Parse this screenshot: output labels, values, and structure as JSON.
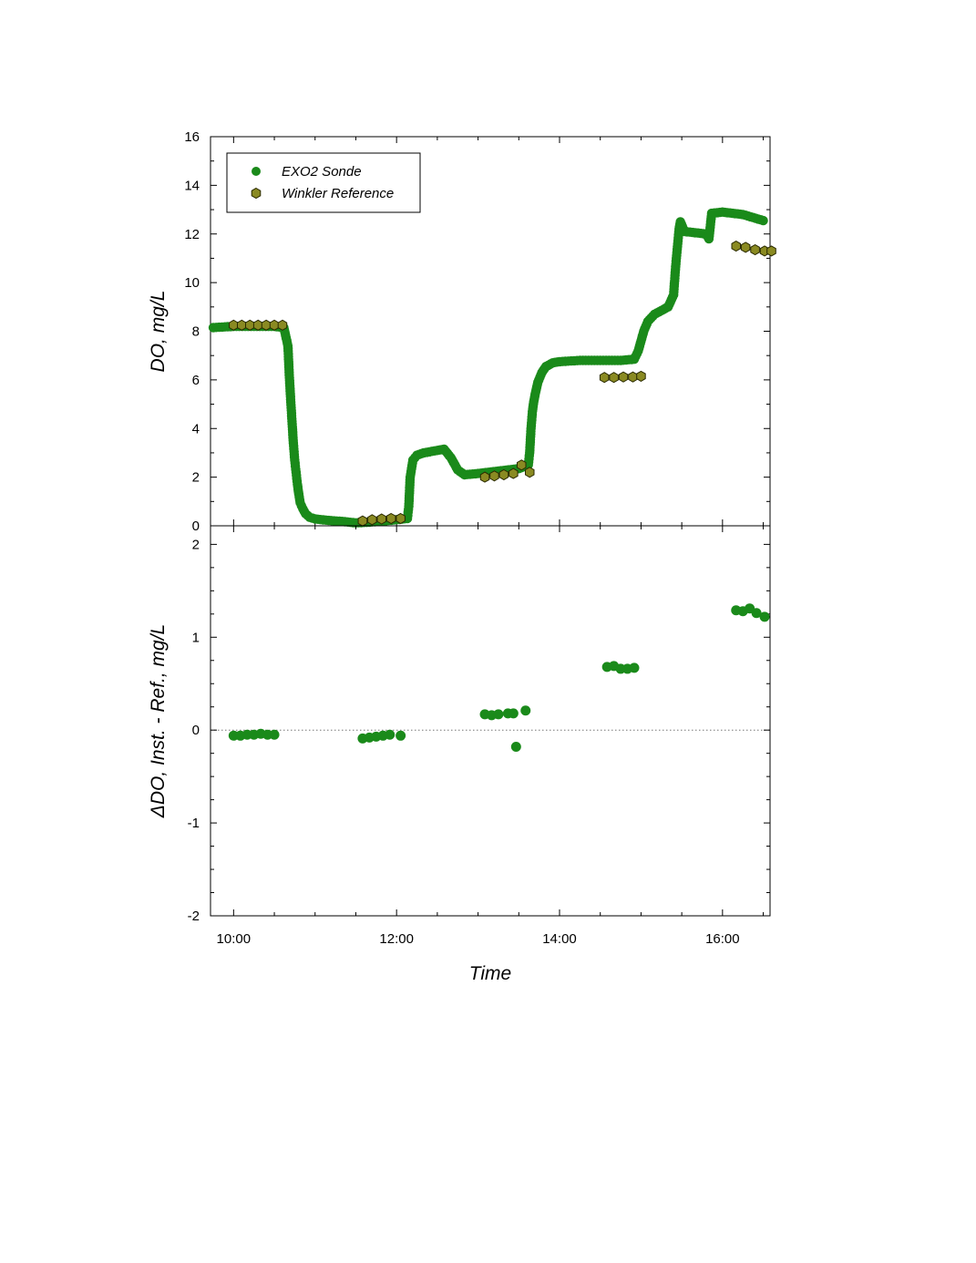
{
  "chart_data": [
    {
      "type": "scatter",
      "title": "",
      "xlabel": "Time",
      "ylabel": "DO, mg/L",
      "xlim": [
        "09:43",
        "16:35"
      ],
      "ylim": [
        0,
        16
      ],
      "yticks": [
        "0",
        "2",
        "4",
        "6",
        "8",
        "10",
        "12",
        "14",
        "16"
      ],
      "legend": "top-left",
      "colors": {
        "sonde": "#1a8a1a",
        "winkler": "#8a8a22"
      },
      "series": [
        {
          "name": "EXO2 Sonde",
          "marker": "circle",
          "points": [
            [
              "09:45",
              8.15
            ],
            [
              "10:00",
              8.2
            ],
            [
              "10:15",
              8.2
            ],
            [
              "10:30",
              8.2
            ],
            [
              "10:37",
              8.15
            ],
            [
              "10:40",
              7.4
            ],
            [
              "10:41",
              6.2
            ],
            [
              "10:42",
              5.2
            ],
            [
              "10:43",
              4.3
            ],
            [
              "10:44",
              3.4
            ],
            [
              "10:45",
              2.7
            ],
            [
              "10:46",
              2.2
            ],
            [
              "10:47",
              1.7
            ],
            [
              "10:48",
              1.3
            ],
            [
              "10:49",
              0.95
            ],
            [
              "10:51",
              0.7
            ],
            [
              "10:53",
              0.5
            ],
            [
              "10:56",
              0.35
            ],
            [
              "11:00",
              0.28
            ],
            [
              "11:10",
              0.22
            ],
            [
              "11:20",
              0.18
            ],
            [
              "11:30",
              0.12
            ],
            [
              "11:40",
              0.15
            ],
            [
              "11:50",
              0.2
            ],
            [
              "12:00",
              0.25
            ],
            [
              "12:08",
              0.3
            ],
            [
              "12:09",
              0.8
            ],
            [
              "12:10",
              2.0
            ],
            [
              "12:12",
              2.7
            ],
            [
              "12:15",
              2.9
            ],
            [
              "12:20",
              3.0
            ],
            [
              "12:30",
              3.1
            ],
            [
              "12:35",
              3.15
            ],
            [
              "12:40",
              2.8
            ],
            [
              "12:45",
              2.3
            ],
            [
              "12:50",
              2.1
            ],
            [
              "13:00",
              2.15
            ],
            [
              "13:15",
              2.25
            ],
            [
              "13:30",
              2.35
            ],
            [
              "13:37",
              2.5
            ],
            [
              "13:38",
              3.0
            ],
            [
              "13:39",
              4.0
            ],
            [
              "13:40",
              4.7
            ],
            [
              "13:41",
              5.1
            ],
            [
              "13:42",
              5.4
            ],
            [
              "13:44",
              5.9
            ],
            [
              "13:47",
              6.3
            ],
            [
              "13:50",
              6.55
            ],
            [
              "13:55",
              6.7
            ],
            [
              "14:00",
              6.75
            ],
            [
              "14:15",
              6.8
            ],
            [
              "14:30",
              6.8
            ],
            [
              "14:45",
              6.8
            ],
            [
              "14:55",
              6.85
            ],
            [
              "14:58",
              7.2
            ],
            [
              "15:00",
              7.6
            ],
            [
              "15:02",
              8.0
            ],
            [
              "15:05",
              8.4
            ],
            [
              "15:10",
              8.7
            ],
            [
              "15:15",
              8.85
            ],
            [
              "15:20",
              9.0
            ],
            [
              "15:24",
              9.5
            ],
            [
              "15:25",
              10.3
            ],
            [
              "15:26",
              11.0
            ],
            [
              "15:27",
              11.6
            ],
            [
              "15:28",
              12.2
            ],
            [
              "15:29",
              12.5
            ],
            [
              "15:32",
              12.1
            ],
            [
              "15:40",
              12.05
            ],
            [
              "15:48",
              12.0
            ],
            [
              "15:50",
              11.8
            ],
            [
              "15:52",
              12.85
            ],
            [
              "16:00",
              12.9
            ],
            [
              "16:15",
              12.8
            ],
            [
              "16:30",
              12.55
            ]
          ]
        },
        {
          "name": "Winkler Reference",
          "marker": "hexagon",
          "points": [
            [
              "10:00",
              8.25
            ],
            [
              "10:06",
              8.25
            ],
            [
              "10:12",
              8.25
            ],
            [
              "10:18",
              8.25
            ],
            [
              "10:24",
              8.25
            ],
            [
              "10:30",
              8.25
            ],
            [
              "10:36",
              8.25
            ],
            [
              "11:35",
              0.2
            ],
            [
              "11:42",
              0.25
            ],
            [
              "11:49",
              0.28
            ],
            [
              "11:56",
              0.3
            ],
            [
              "12:03",
              0.3
            ],
            [
              "13:05",
              2.0
            ],
            [
              "13:12",
              2.05
            ],
            [
              "13:19",
              2.1
            ],
            [
              "13:26",
              2.15
            ],
            [
              "13:32",
              2.5
            ],
            [
              "13:38",
              2.2
            ],
            [
              "14:33",
              6.1
            ],
            [
              "14:40",
              6.1
            ],
            [
              "14:47",
              6.12
            ],
            [
              "14:54",
              6.12
            ],
            [
              "15:00",
              6.15
            ],
            [
              "16:10",
              11.5
            ],
            [
              "16:17",
              11.45
            ],
            [
              "16:24",
              11.35
            ],
            [
              "16:31",
              11.3
            ],
            [
              "16:36",
              11.3
            ]
          ]
        }
      ]
    },
    {
      "type": "scatter",
      "title": "",
      "xlabel": "Time",
      "ylabel": "ΔDO, Inst. - Ref., mg/L",
      "xlim": [
        "09:43",
        "16:35"
      ],
      "ylim": [
        -2,
        2.2
      ],
      "xticks": [
        "10:00",
        "12:00",
        "14:00",
        "16:00"
      ],
      "yticks": [
        "-2",
        "-1",
        "0",
        "1",
        "2"
      ],
      "zero_line": true,
      "colors": {
        "delta": "#1a8a1a"
      },
      "series": [
        {
          "marker": "circle",
          "points": [
            [
              "10:00",
              -0.06
            ],
            [
              "10:05",
              -0.06
            ],
            [
              "10:10",
              -0.05
            ],
            [
              "10:15",
              -0.05
            ],
            [
              "10:20",
              -0.04
            ],
            [
              "10:25",
              -0.05
            ],
            [
              "10:30",
              -0.05
            ],
            [
              "11:35",
              -0.09
            ],
            [
              "11:40",
              -0.08
            ],
            [
              "11:45",
              -0.07
            ],
            [
              "11:50",
              -0.06
            ],
            [
              "11:55",
              -0.05
            ],
            [
              "12:03",
              -0.06
            ],
            [
              "13:05",
              0.17
            ],
            [
              "13:10",
              0.16
            ],
            [
              "13:15",
              0.17
            ],
            [
              "13:22",
              0.18
            ],
            [
              "13:26",
              0.18
            ],
            [
              "13:28",
              -0.18
            ],
            [
              "13:35",
              0.21
            ],
            [
              "14:35",
              0.68
            ],
            [
              "14:40",
              0.69
            ],
            [
              "14:45",
              0.66
            ],
            [
              "14:50",
              0.66
            ],
            [
              "14:55",
              0.67
            ],
            [
              "16:10",
              1.29
            ],
            [
              "16:15",
              1.28
            ],
            [
              "16:20",
              1.31
            ],
            [
              "16:25",
              1.26
            ],
            [
              "16:31",
              1.22
            ]
          ]
        }
      ]
    }
  ]
}
